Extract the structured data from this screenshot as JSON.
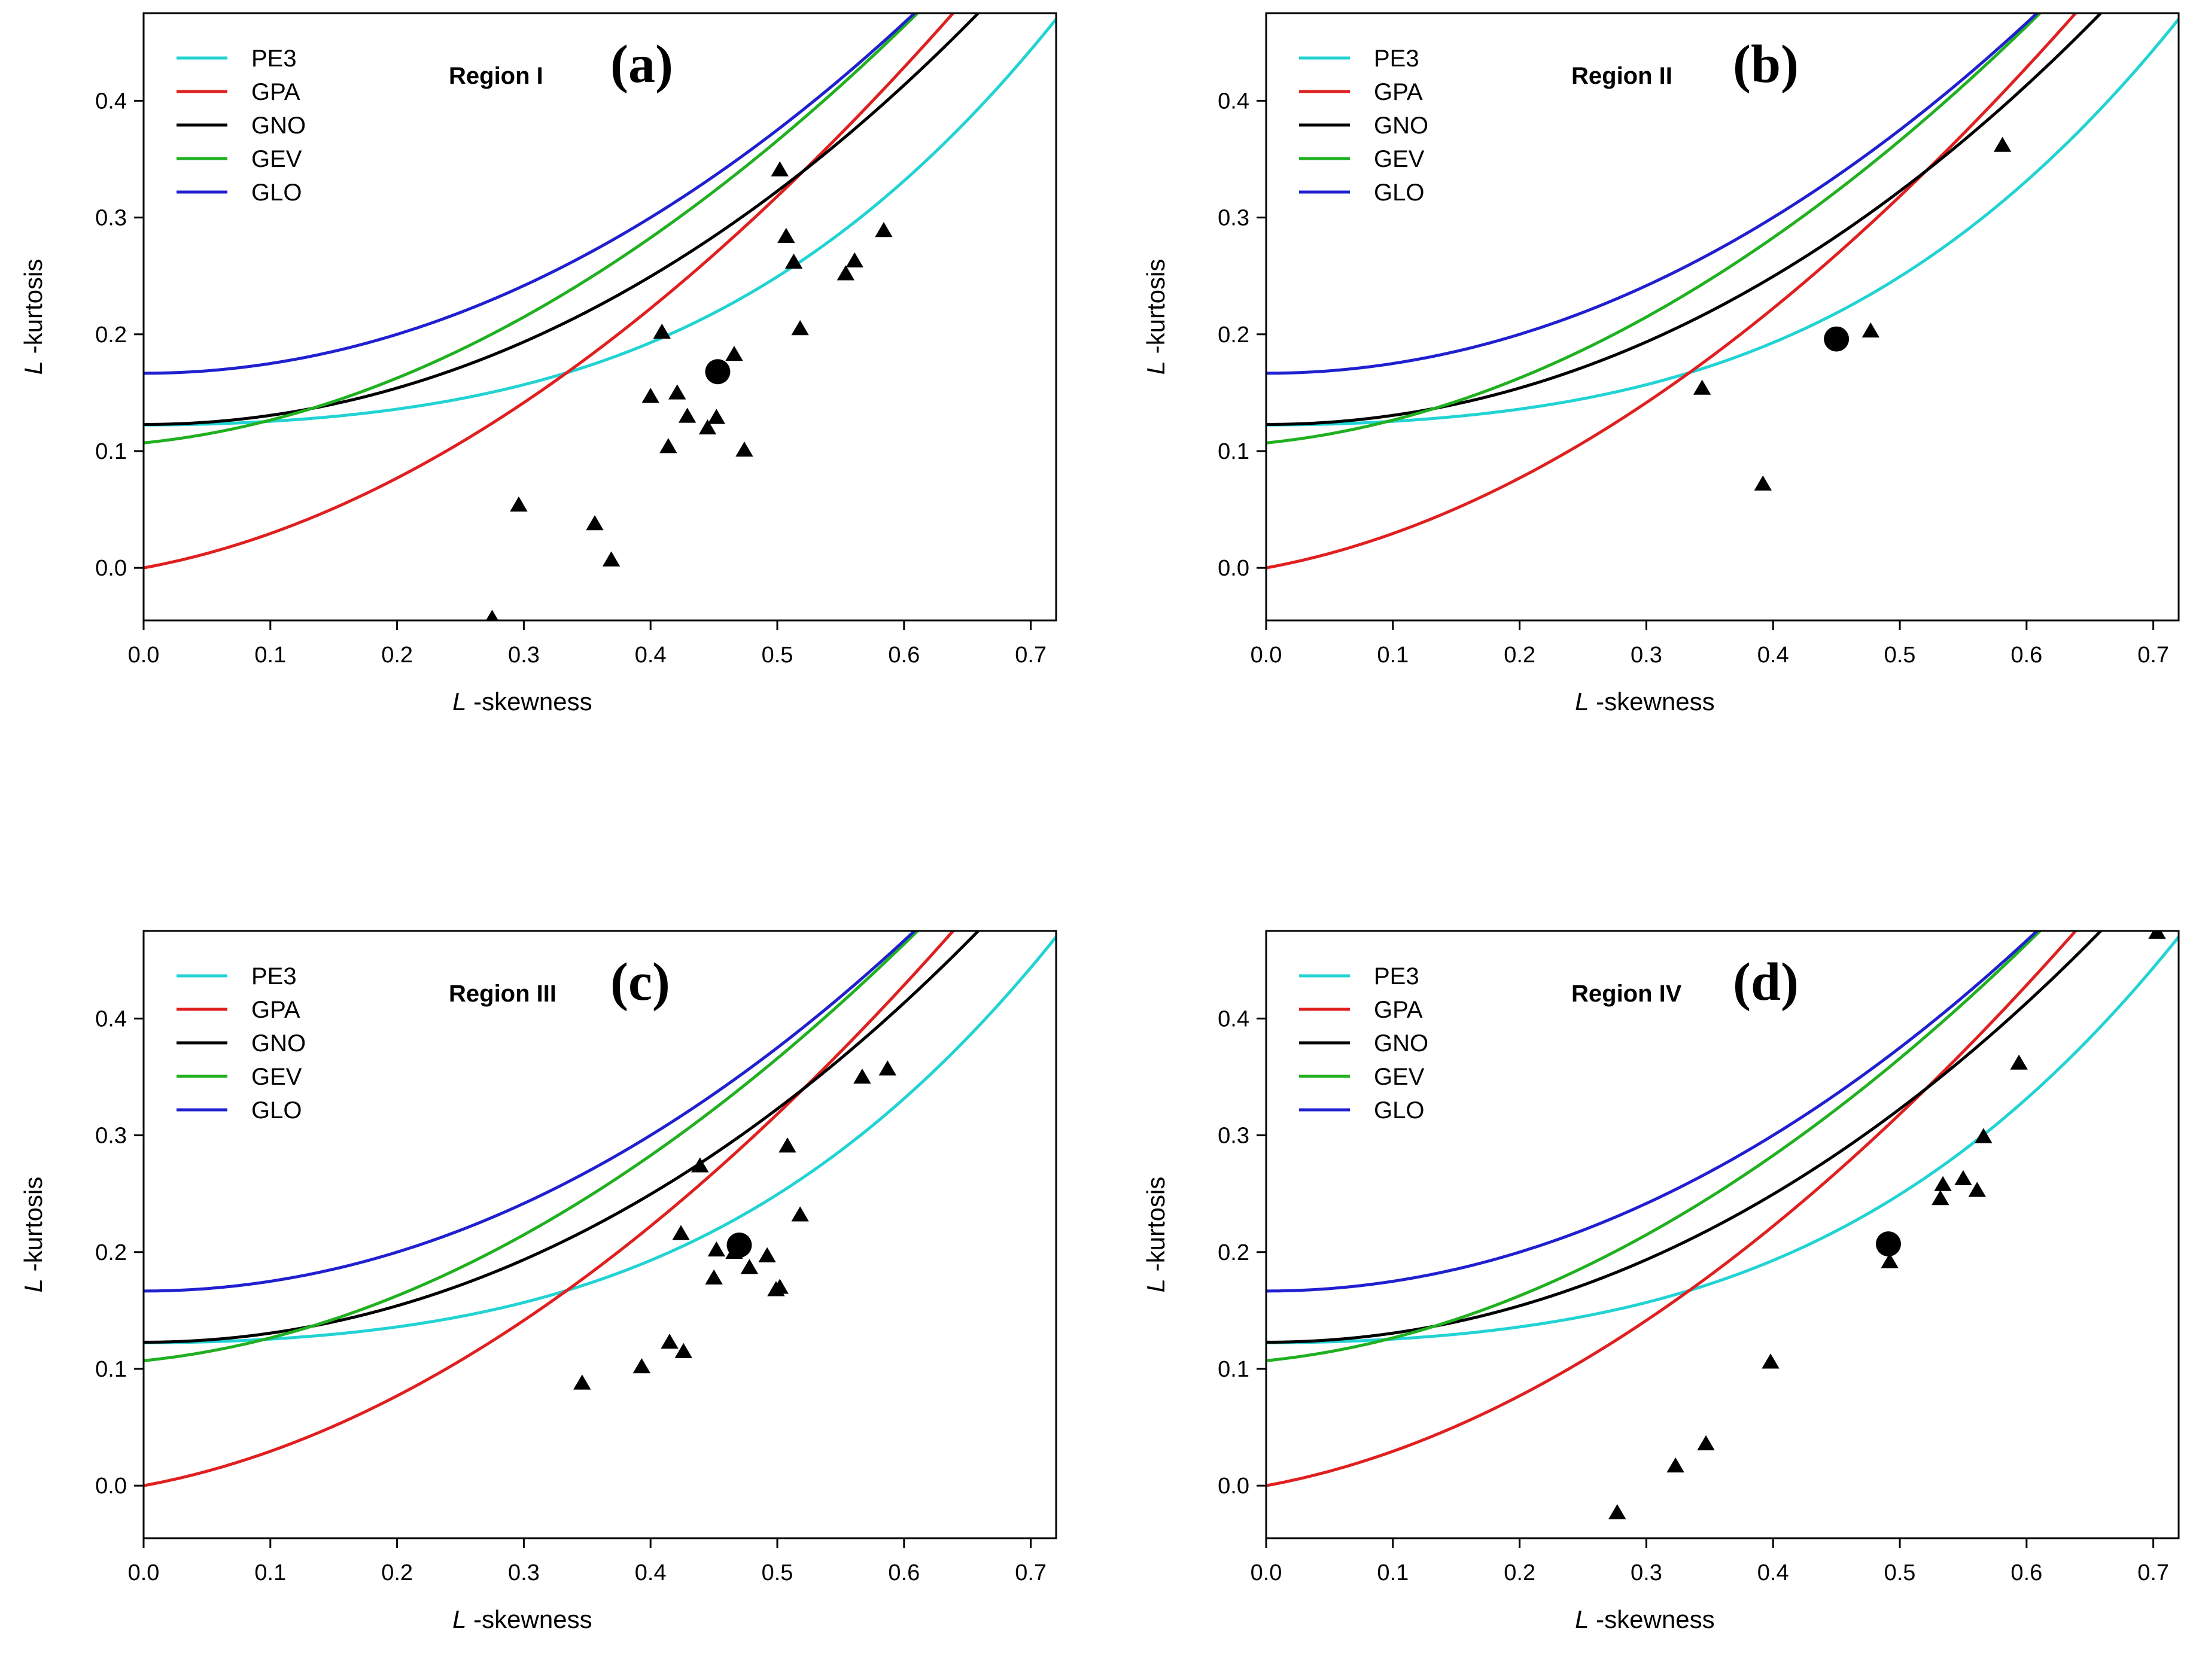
{
  "colors": {
    "PE3": "#22d3d3",
    "GPA": "#e02020",
    "GNO": "#000000",
    "GEV": "#20b020",
    "GLO": "#2020d0",
    "points": "#000000"
  },
  "chart_data": [
    {
      "type": "scatter",
      "panel_letter": "(a)",
      "region": "Region I",
      "xlabel_italic": "L",
      "xlabel_rest": "-skewness",
      "ylabel_italic": "L",
      "ylabel_rest": "-kurtosis",
      "xlim": [
        0,
        0.72
      ],
      "ylim": [
        -0.045,
        0.475
      ],
      "xticks": [
        "0.0",
        "0.1",
        "0.2",
        "0.3",
        "0.4",
        "0.5",
        "0.6",
        "0.7"
      ],
      "yticks": [
        "0.0",
        "0.1",
        "0.2",
        "0.3",
        "0.4"
      ],
      "legend": [
        "PE3",
        "GPA",
        "GNO",
        "GEV",
        "GLO"
      ],
      "sites": [
        [
          0.275,
          -0.043
        ],
        [
          0.296,
          0.054
        ],
        [
          0.356,
          0.038
        ],
        [
          0.369,
          0.007
        ],
        [
          0.4,
          0.147
        ],
        [
          0.409,
          0.202
        ],
        [
          0.414,
          0.104
        ],
        [
          0.421,
          0.15
        ],
        [
          0.429,
          0.13
        ],
        [
          0.445,
          0.12
        ],
        [
          0.452,
          0.129
        ],
        [
          0.466,
          0.183
        ],
        [
          0.474,
          0.101
        ],
        [
          0.502,
          0.341
        ],
        [
          0.507,
          0.284
        ],
        [
          0.513,
          0.262
        ],
        [
          0.518,
          0.205
        ],
        [
          0.554,
          0.252
        ],
        [
          0.561,
          0.263
        ],
        [
          0.584,
          0.289
        ]
      ],
      "regional_average": [
        0.453,
        0.168
      ]
    },
    {
      "type": "scatter",
      "panel_letter": "(b)",
      "region": "Region II",
      "xlabel_italic": "L",
      "xlabel_rest": "-skewness",
      "ylabel_italic": "L",
      "ylabel_rest": "-kurtosis",
      "xlim": [
        0,
        0.72
      ],
      "ylim": [
        -0.045,
        0.475
      ],
      "xticks": [
        "0.0",
        "0.1",
        "0.2",
        "0.3",
        "0.4",
        "0.5",
        "0.6",
        "0.7"
      ],
      "yticks": [
        "0.0",
        "0.1",
        "0.2",
        "0.3",
        "0.4"
      ],
      "legend": [
        "PE3",
        "GPA",
        "GNO",
        "GEV",
        "GLO"
      ],
      "sites": [
        [
          0.344,
          0.154
        ],
        [
          0.392,
          0.072
        ],
        [
          0.477,
          0.203
        ],
        [
          0.581,
          0.362
        ]
      ],
      "regional_average": [
        0.45,
        0.196
      ]
    },
    {
      "type": "scatter",
      "panel_letter": "(c)",
      "region": "Region III",
      "xlabel_italic": "L",
      "xlabel_rest": "-skewness",
      "ylabel_italic": "L",
      "ylabel_rest": "-kurtosis",
      "xlim": [
        0,
        0.72
      ],
      "ylim": [
        -0.045,
        0.475
      ],
      "xticks": [
        "0.0",
        "0.1",
        "0.2",
        "0.3",
        "0.4",
        "0.5",
        "0.6",
        "0.7"
      ],
      "yticks": [
        "0.0",
        "0.1",
        "0.2",
        "0.3",
        "0.4"
      ],
      "legend": [
        "PE3",
        "GPA",
        "GNO",
        "GEV",
        "GLO"
      ],
      "sites": [
        [
          0.346,
          0.088
        ],
        [
          0.393,
          0.102
        ],
        [
          0.415,
          0.123
        ],
        [
          0.424,
          0.216
        ],
        [
          0.426,
          0.115
        ],
        [
          0.439,
          0.274
        ],
        [
          0.45,
          0.178
        ],
        [
          0.452,
          0.202
        ],
        [
          0.466,
          0.2
        ],
        [
          0.478,
          0.187
        ],
        [
          0.492,
          0.197
        ],
        [
          0.499,
          0.168
        ],
        [
          0.502,
          0.17
        ],
        [
          0.508,
          0.291
        ],
        [
          0.518,
          0.232
        ],
        [
          0.567,
          0.35
        ],
        [
          0.587,
          0.357
        ]
      ],
      "regional_average": [
        0.47,
        0.206
      ]
    },
    {
      "type": "scatter",
      "panel_letter": "(d)",
      "region": "Region IV",
      "xlabel_italic": "L",
      "xlabel_rest": "-skewness",
      "ylabel_italic": "L",
      "ylabel_rest": "-kurtosis",
      "xlim": [
        0,
        0.72
      ],
      "ylim": [
        -0.045,
        0.475
      ],
      "xticks": [
        "0.0",
        "0.1",
        "0.2",
        "0.3",
        "0.4",
        "0.5",
        "0.6",
        "0.7"
      ],
      "yticks": [
        "0.0",
        "0.1",
        "0.2",
        "0.3",
        "0.4"
      ],
      "legend": [
        "PE3",
        "GPA",
        "GNO",
        "GEV",
        "GLO"
      ],
      "sites": [
        [
          0.277,
          -0.023
        ],
        [
          0.323,
          0.017
        ],
        [
          0.347,
          0.036
        ],
        [
          0.398,
          0.106
        ],
        [
          0.492,
          0.192
        ],
        [
          0.532,
          0.246
        ],
        [
          0.534,
          0.258
        ],
        [
          0.55,
          0.263
        ],
        [
          0.561,
          0.253
        ],
        [
          0.566,
          0.299
        ],
        [
          0.594,
          0.362
        ],
        [
          0.703,
          0.474
        ]
      ],
      "regional_average": [
        0.491,
        0.207
      ]
    }
  ]
}
